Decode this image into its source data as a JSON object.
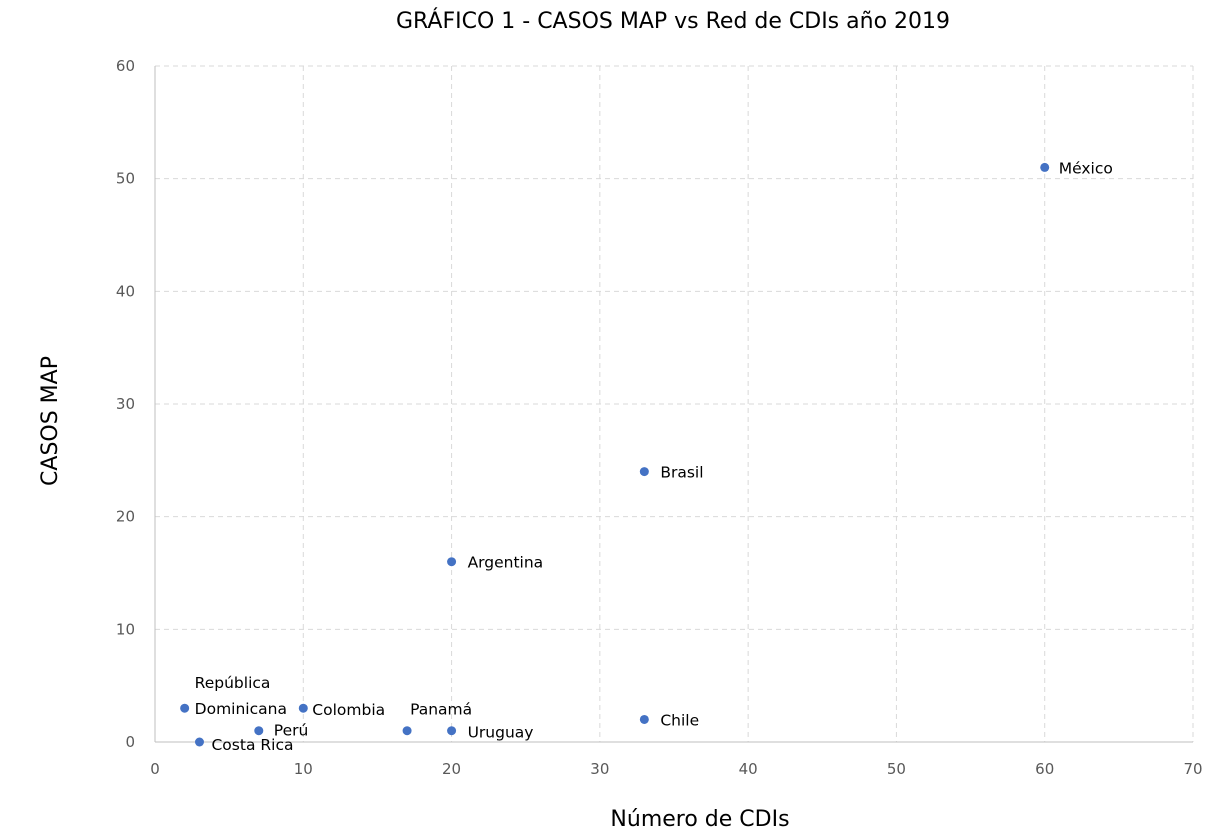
{
  "chart_data": {
    "type": "scatter",
    "title": "GRÁFICO 1 - CASOS MAP vs Red de CDIs año 2019",
    "xlabel": "Número de CDIs",
    "ylabel": "CASOS MAP",
    "xlim": [
      0,
      70
    ],
    "ylim": [
      0,
      60
    ],
    "x_ticks": [
      0,
      10,
      20,
      30,
      40,
      50,
      60,
      70
    ],
    "y_ticks": [
      0,
      10,
      20,
      30,
      40,
      50,
      60
    ],
    "grid": true,
    "legend": "none",
    "marker_color": "#4472C4",
    "points": [
      {
        "label": "México",
        "x": 60,
        "y": 51
      },
      {
        "label": "Brasil",
        "x": 33,
        "y": 24
      },
      {
        "label": "Argentina",
        "x": 20,
        "y": 16
      },
      {
        "label": "Chile",
        "x": 33,
        "y": 2
      },
      {
        "label": "Uruguay",
        "x": 20,
        "y": 1
      },
      {
        "label": "Panamá",
        "x": 17,
        "y": 1
      },
      {
        "label": "Colombia",
        "x": 10,
        "y": 3
      },
      {
        "label": "Perú",
        "x": 7,
        "y": 1
      },
      {
        "label": "Costa Rica",
        "x": 3,
        "y": 0
      },
      {
        "label": "República Dominicana",
        "x": 2,
        "y": 3
      }
    ]
  }
}
